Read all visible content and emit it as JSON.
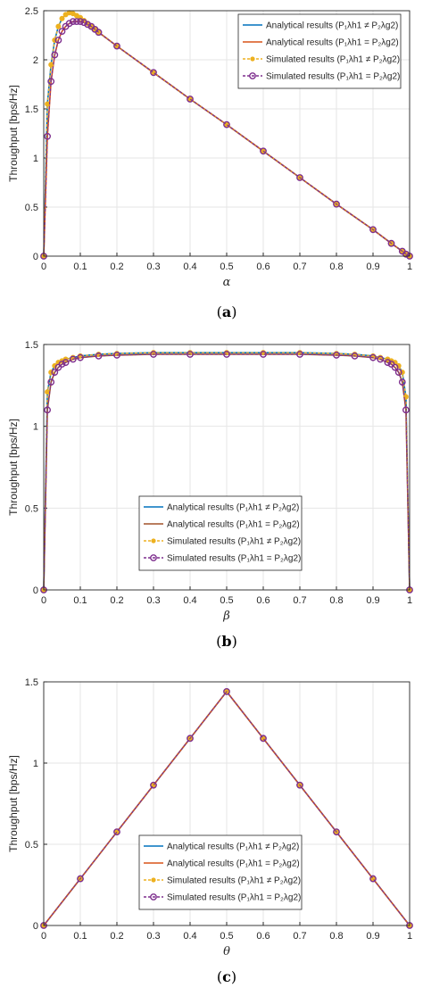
{
  "chart_data": [
    {
      "type": "line",
      "caption": "(a)",
      "xlabel": "α",
      "ylabel": "Throughput [bps/Hz]",
      "xlim": [
        0,
        1
      ],
      "ylim": [
        0,
        2.5
      ],
      "xticks": [
        "0",
        "0.1",
        "0.2",
        "0.3",
        "0.4",
        "0.5",
        "0.6",
        "0.7",
        "0.8",
        "0.9",
        "1"
      ],
      "yticks": [
        "0",
        "0.5",
        "1",
        "1.5",
        "2",
        "2.5"
      ],
      "grid": true,
      "legend_position": "top-right",
      "x": [
        0,
        0.01,
        0.02,
        0.03,
        0.04,
        0.05,
        0.06,
        0.07,
        0.08,
        0.09,
        0.1,
        0.11,
        0.12,
        0.13,
        0.14,
        0.15,
        0.2,
        0.3,
        0.4,
        0.5,
        0.6,
        0.7,
        0.8,
        0.9,
        0.95,
        0.98,
        0.99,
        1.0
      ],
      "series": [
        {
          "name": "Analytical results (P₁λh1 ≠ P₂λg2)",
          "color": "#0072BD",
          "marker": "none",
          "values": [
            0,
            1.55,
            1.95,
            2.2,
            2.34,
            2.42,
            2.46,
            2.48,
            2.47,
            2.45,
            2.43,
            2.4,
            2.37,
            2.34,
            2.31,
            2.28,
            2.14,
            1.87,
            1.6,
            1.34,
            1.07,
            0.8,
            0.53,
            0.27,
            0.13,
            0.05,
            0.02,
            0
          ]
        },
        {
          "name": "Analytical results (P₁λh1 = P₂λg2)",
          "color": "#D95319",
          "marker": "none",
          "values": [
            0,
            1.22,
            1.78,
            2.05,
            2.2,
            2.29,
            2.34,
            2.37,
            2.39,
            2.39,
            2.39,
            2.38,
            2.36,
            2.34,
            2.31,
            2.28,
            2.14,
            1.87,
            1.6,
            1.34,
            1.07,
            0.8,
            0.53,
            0.27,
            0.13,
            0.05,
            0.02,
            0
          ]
        },
        {
          "name": "Simulated results (P₁λh1 ≠ P₂λg2)",
          "color": "#EDB120",
          "marker": "filled-dot",
          "dashed": true,
          "values": [
            0,
            1.55,
            1.95,
            2.2,
            2.34,
            2.42,
            2.46,
            2.48,
            2.47,
            2.45,
            2.43,
            2.4,
            2.37,
            2.34,
            2.31,
            2.28,
            2.14,
            1.87,
            1.6,
            1.34,
            1.07,
            0.8,
            0.53,
            0.27,
            0.13,
            0.05,
            0.02,
            0
          ]
        },
        {
          "name": "Simulated results (P₁λh1 = P₂λg2)",
          "color": "#7E2F8E",
          "marker": "circle",
          "dashed": true,
          "values": [
            0,
            1.22,
            1.78,
            2.05,
            2.2,
            2.29,
            2.34,
            2.37,
            2.39,
            2.39,
            2.39,
            2.38,
            2.36,
            2.34,
            2.31,
            2.28,
            2.14,
            1.87,
            1.6,
            1.34,
            1.07,
            0.8,
            0.53,
            0.27,
            0.13,
            0.05,
            0.02,
            0
          ]
        }
      ]
    },
    {
      "type": "line",
      "caption": "(b)",
      "xlabel": "β",
      "ylabel": "Throughput [bps/Hz]",
      "xlim": [
        0,
        1
      ],
      "ylim": [
        0,
        1.5
      ],
      "xticks": [
        "0",
        "0.1",
        "0.2",
        "0.3",
        "0.4",
        "0.5",
        "0.6",
        "0.7",
        "0.8",
        "0.9",
        "1"
      ],
      "yticks": [
        "0",
        "0.5",
        "1",
        "1.5"
      ],
      "grid": true,
      "legend_position": "bottom-center",
      "x": [
        0,
        0.01,
        0.02,
        0.03,
        0.04,
        0.05,
        0.06,
        0.08,
        0.1,
        0.15,
        0.2,
        0.3,
        0.4,
        0.5,
        0.6,
        0.7,
        0.8,
        0.85,
        0.9,
        0.92,
        0.94,
        0.95,
        0.96,
        0.97,
        0.98,
        0.99,
        1.0
      ],
      "series": [
        {
          "name": "Analytical results (P₁λh1 ≠ P₂λg2)",
          "color": "#0072BD",
          "marker": "none",
          "values": [
            0,
            1.21,
            1.33,
            1.37,
            1.39,
            1.4,
            1.41,
            1.42,
            1.43,
            1.44,
            1.445,
            1.45,
            1.45,
            1.45,
            1.45,
            1.45,
            1.445,
            1.44,
            1.43,
            1.42,
            1.41,
            1.4,
            1.39,
            1.37,
            1.33,
            1.18,
            0
          ]
        },
        {
          "name": "Analytical results (P₁λh1 = P₂λg2)",
          "color": "#A2522A",
          "marker": "none",
          "values": [
            0,
            1.1,
            1.27,
            1.33,
            1.36,
            1.38,
            1.39,
            1.41,
            1.42,
            1.43,
            1.435,
            1.44,
            1.44,
            1.44,
            1.44,
            1.44,
            1.435,
            1.43,
            1.42,
            1.41,
            1.39,
            1.38,
            1.36,
            1.33,
            1.27,
            1.1,
            0
          ]
        },
        {
          "name": "Simulated results (P₁λh1 ≠ P₂λg2)",
          "color": "#EDB120",
          "marker": "filled-dot",
          "dashed": true,
          "values": [
            0,
            1.21,
            1.33,
            1.37,
            1.39,
            1.4,
            1.41,
            1.42,
            1.43,
            1.44,
            1.445,
            1.45,
            1.45,
            1.45,
            1.45,
            1.45,
            1.445,
            1.44,
            1.43,
            1.42,
            1.41,
            1.4,
            1.39,
            1.37,
            1.33,
            1.18,
            0
          ]
        },
        {
          "name": "Simulated results (P₁λh1 = P₂λg2)",
          "color": "#7E2F8E",
          "marker": "circle",
          "dashed": true,
          "values": [
            0,
            1.1,
            1.27,
            1.33,
            1.36,
            1.38,
            1.39,
            1.41,
            1.42,
            1.43,
            1.435,
            1.44,
            1.44,
            1.44,
            1.44,
            1.44,
            1.435,
            1.43,
            1.42,
            1.41,
            1.39,
            1.38,
            1.36,
            1.33,
            1.27,
            1.1,
            0
          ]
        }
      ]
    },
    {
      "type": "line",
      "caption": "(c)",
      "xlabel": "θ",
      "ylabel": "Throughput [bps/Hz]",
      "xlim": [
        0,
        1
      ],
      "ylim": [
        0,
        1.5
      ],
      "xticks": [
        "0",
        "0.1",
        "0.2",
        "0.3",
        "0.4",
        "0.5",
        "0.6",
        "0.7",
        "0.8",
        "0.9",
        "1"
      ],
      "yticks": [
        "0",
        "0.5",
        "1",
        "1.5"
      ],
      "grid": true,
      "legend_position": "bottom-center",
      "x": [
        0,
        0.1,
        0.2,
        0.3,
        0.4,
        0.5,
        0.6,
        0.7,
        0.8,
        0.9,
        1.0
      ],
      "series": [
        {
          "name": "Analytical results (P₁λh1 ≠ P₂λg2)",
          "color": "#0072BD",
          "marker": "none",
          "values": [
            0,
            0.288,
            0.576,
            0.864,
            1.152,
            1.44,
            1.152,
            0.864,
            0.576,
            0.288,
            0
          ]
        },
        {
          "name": "Analytical results (P₁λh1 = P₂λg2)",
          "color": "#D95319",
          "marker": "none",
          "values": [
            0,
            0.288,
            0.576,
            0.864,
            1.152,
            1.44,
            1.152,
            0.864,
            0.576,
            0.288,
            0
          ]
        },
        {
          "name": "Simulated results (P₁λh1 ≠ P₂λg2)",
          "color": "#EDB120",
          "marker": "filled-dot",
          "dashed": true,
          "values": [
            0,
            0.288,
            0.576,
            0.864,
            1.152,
            1.44,
            1.152,
            0.864,
            0.576,
            0.288,
            0
          ]
        },
        {
          "name": "Simulated results (P₁λh1 = P₂λg2)",
          "color": "#7E2F8E",
          "marker": "circle",
          "dashed": true,
          "values": [
            0,
            0.288,
            0.576,
            0.864,
            1.152,
            1.44,
            1.152,
            0.864,
            0.576,
            0.288,
            0
          ]
        }
      ]
    }
  ]
}
